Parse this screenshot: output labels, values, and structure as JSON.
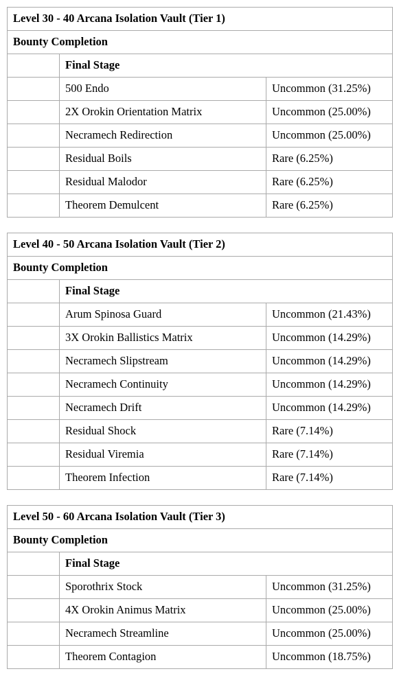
{
  "tables": [
    {
      "title": "Level 30 - 40 Arcana Isolation Vault (Tier 1)",
      "subheading": "Bounty Completion",
      "stage": "Final Stage",
      "rows": [
        {
          "item": "500 Endo",
          "rarity": "Uncommon (31.25%)"
        },
        {
          "item": "2X Orokin Orientation Matrix",
          "rarity": "Uncommon (25.00%)"
        },
        {
          "item": "Necramech Redirection",
          "rarity": "Uncommon (25.00%)"
        },
        {
          "item": "Residual Boils",
          "rarity": "Rare (6.25%)"
        },
        {
          "item": "Residual Malodor",
          "rarity": "Rare (6.25%)"
        },
        {
          "item": "Theorem Demulcent",
          "rarity": "Rare (6.25%)"
        }
      ]
    },
    {
      "title": "Level 40 - 50 Arcana Isolation Vault (Tier 2)",
      "subheading": "Bounty Completion",
      "stage": "Final Stage",
      "rows": [
        {
          "item": "Arum Spinosa Guard",
          "rarity": "Uncommon (21.43%)"
        },
        {
          "item": "3X Orokin Ballistics Matrix",
          "rarity": "Uncommon (14.29%)"
        },
        {
          "item": "Necramech Slipstream",
          "rarity": "Uncommon (14.29%)"
        },
        {
          "item": "Necramech Continuity",
          "rarity": "Uncommon (14.29%)"
        },
        {
          "item": "Necramech Drift",
          "rarity": "Uncommon (14.29%)"
        },
        {
          "item": "Residual Shock",
          "rarity": "Rare (7.14%)"
        },
        {
          "item": "Residual Viremia",
          "rarity": "Rare (7.14%)"
        },
        {
          "item": "Theorem Infection",
          "rarity": "Rare (7.14%)"
        }
      ]
    },
    {
      "title": "Level 50 - 60 Arcana Isolation Vault (Tier 3)",
      "subheading": "Bounty Completion",
      "stage": "Final Stage",
      "rows": [
        {
          "item": "Sporothrix Stock",
          "rarity": "Uncommon (31.25%)"
        },
        {
          "item": "4X Orokin Animus Matrix",
          "rarity": "Uncommon (25.00%)"
        },
        {
          "item": "Necramech Streamline",
          "rarity": "Uncommon (25.00%)"
        },
        {
          "item": "Theorem Contagion",
          "rarity": "Uncommon (18.75%)"
        }
      ]
    }
  ]
}
